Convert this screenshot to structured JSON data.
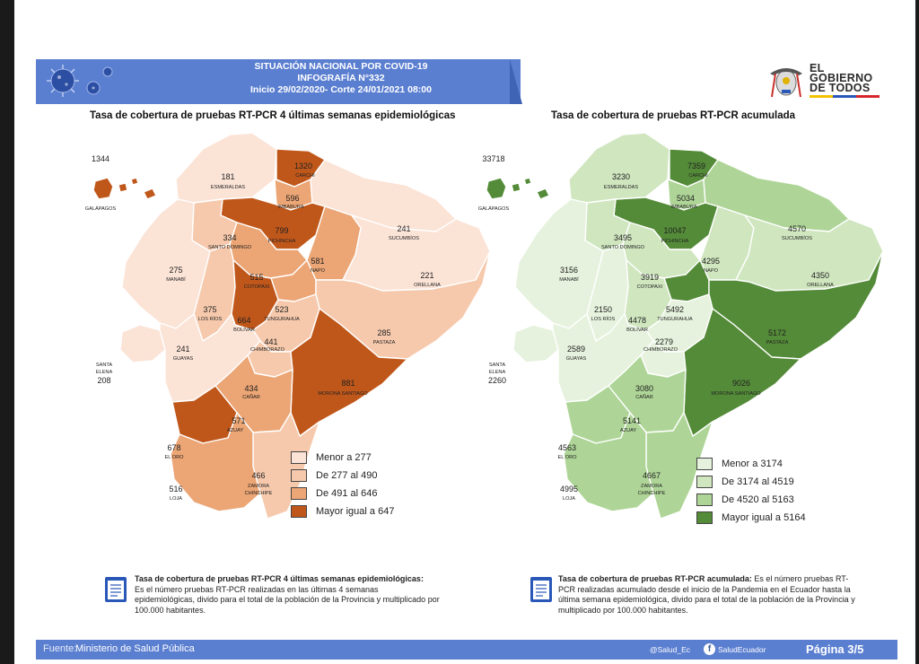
{
  "header": {
    "line1": "SITUACIÓN NACIONAL POR  COVID-19",
    "line2": "INFOGRAFÍA N°332",
    "line3": "Inicio 29/02/2020- Corte 24/01/2021 08:00"
  },
  "logo": {
    "line1": "EL",
    "line2": "GOBIERNO",
    "line3": "DE TODOS",
    "icon": "ecuador-coat-of-arms-icon"
  },
  "colors": {
    "banner": "#5b7fd0",
    "left_scale": [
      "#fbe3d6",
      "#f6c9ac",
      "#eca574",
      "#c0571a"
    ],
    "right_scale": [
      "#e6f2dd",
      "#cfe6bf",
      "#aed597",
      "#548b38"
    ]
  },
  "maps": [
    {
      "title": "Tasa de cobertura de pruebas RT-PCR 4 últimas semanas epidemiológicas",
      "legend": [
        "Menor a 277",
        "De 277 al 490",
        "De 491 al 646",
        "Mayor igual a 647"
      ],
      "provinces": [
        {
          "name": "GALÁPAGOS",
          "value": "1344",
          "class": 3
        },
        {
          "name": "ESMERALDAS",
          "value": "181",
          "class": 0
        },
        {
          "name": "CARCHI",
          "value": "1320",
          "class": 3
        },
        {
          "name": "IMBABURA",
          "value": "596",
          "class": 2
        },
        {
          "name": "PICHINCHA",
          "value": "799",
          "class": 3
        },
        {
          "name": "SUCUMBÍOS",
          "value": "241",
          "class": 0
        },
        {
          "name": "SANTO DOMINGO DE LOS TSÁCHILAS",
          "value": "334",
          "class": 1
        },
        {
          "name": "NAPO",
          "value": "581",
          "class": 2
        },
        {
          "name": "ORELLANA",
          "value": "221",
          "class": 0
        },
        {
          "name": "MANABÍ",
          "value": "275",
          "class": 0
        },
        {
          "name": "COTOPAXI",
          "value": "515",
          "class": 2
        },
        {
          "name": "LOS RÍOS",
          "value": "375",
          "class": 1
        },
        {
          "name": "TUNGURAHUA",
          "value": "523",
          "class": 2
        },
        {
          "name": "BOLÍVAR",
          "value": "664",
          "class": 3
        },
        {
          "name": "PASTAZA",
          "value": "285",
          "class": 1
        },
        {
          "name": "CHIMBORAZO",
          "value": "441",
          "class": 1
        },
        {
          "name": "GUAYAS",
          "value": "241",
          "class": 0
        },
        {
          "name": "SANTA ELENA",
          "value": "208",
          "class": 0
        },
        {
          "name": "CAÑAR",
          "value": "434",
          "class": 1
        },
        {
          "name": "MORONA SANTIAGO",
          "value": "881",
          "class": 3
        },
        {
          "name": "AZUAY",
          "value": "571",
          "class": 2
        },
        {
          "name": "EL ORO",
          "value": "678",
          "class": 3
        },
        {
          "name": "ZAMORA CHINCHIPE",
          "value": "466",
          "class": 1
        },
        {
          "name": "LOJA",
          "value": "516",
          "class": 2
        }
      ],
      "note_title": "Tasa de cobertura de pruebas RT-PCR 4 últimas semanas epidemiológicas:",
      "note_text": "Es el número pruebas RT-PCR realizadas en las últimas 4 semanas epidemiológicas, divido para el total de la población de la Provincia y multiplicado por 100.000 habitantes."
    },
    {
      "title": "Tasa de cobertura de pruebas RT-PCR acumulada",
      "legend": [
        "Menor a 3174",
        "De 3174 al 4519",
        "De 4520 al 5163",
        "Mayor igual a 5164"
      ],
      "provinces": [
        {
          "name": "GALÁPAGOS",
          "value": "33718",
          "class": 3
        },
        {
          "name": "ESMERALDAS",
          "value": "3230",
          "class": 1
        },
        {
          "name": "CARCHI",
          "value": "7359",
          "class": 3
        },
        {
          "name": "IMBABURA",
          "value": "5034",
          "class": 2
        },
        {
          "name": "PICHINCHA",
          "value": "10047",
          "class": 3
        },
        {
          "name": "SUCUMBÍOS",
          "value": "4570",
          "class": 2
        },
        {
          "name": "SANTO DOMINGO DE LOS TSÁCHILAS",
          "value": "3495",
          "class": 1
        },
        {
          "name": "NAPO",
          "value": "4295",
          "class": 1
        },
        {
          "name": "ORELLANA",
          "value": "4350",
          "class": 1
        },
        {
          "name": "MANABÍ",
          "value": "3156",
          "class": 0
        },
        {
          "name": "COTOPAXI",
          "value": "3919",
          "class": 1
        },
        {
          "name": "LOS RÍOS",
          "value": "2150",
          "class": 0
        },
        {
          "name": "TUNGURAHUA",
          "value": "5492",
          "class": 3
        },
        {
          "name": "BOLÍVAR",
          "value": "4478",
          "class": 1
        },
        {
          "name": "PASTAZA",
          "value": "5172",
          "class": 3
        },
        {
          "name": "CHIMBORAZO",
          "value": "2279",
          "class": 0
        },
        {
          "name": "GUAYAS",
          "value": "2589",
          "class": 0
        },
        {
          "name": "SANTA ELENA",
          "value": "2260",
          "class": 0
        },
        {
          "name": "CAÑAR",
          "value": "3080",
          "class": 0
        },
        {
          "name": "MORONA SANTIAGO",
          "value": "9026",
          "class": 3
        },
        {
          "name": "AZUAY",
          "value": "5141",
          "class": 2
        },
        {
          "name": "EL ORO",
          "value": "4563",
          "class": 2
        },
        {
          "name": "ZAMORA CHINCHIPE",
          "value": "4667",
          "class": 2
        },
        {
          "name": "LOJA",
          "value": "4995",
          "class": 2
        }
      ],
      "note_title": "Tasa de cobertura de pruebas RT-PCR acumulada:",
      "note_text": "Es el número pruebas RT-PCR realizadas acumulado desde el inicio de la Pandemia en el Ecuador hasta la última semana epidemiológica, divido para el total de la población de la Provincia y multiplicado por 100.000 habitantes."
    }
  ],
  "footer": {
    "source_label": "Fuente:",
    "source": "Ministerio de Salud Pública",
    "twitter": "@Salud_Ec",
    "facebook": "SaludEcuador",
    "page": "Página 3/5"
  }
}
